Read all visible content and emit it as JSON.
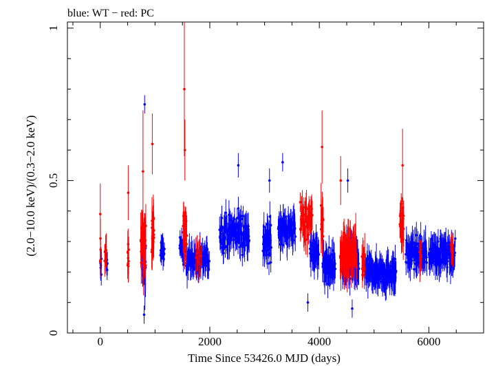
{
  "chart_data": {
    "type": "scatter",
    "title": "blue: WT − red: PC",
    "xlabel": "Time Since 53426.0 MJD (days)",
    "ylabel": "(2.0−10.0 keV)/(0.3−2.0 keV)",
    "xlim": [
      -600,
      7000
    ],
    "ylim": [
      0,
      1.02
    ],
    "x_ticks": [
      0,
      2000,
      4000,
      6000
    ],
    "x_tick_labels": [
      "0",
      "2000",
      "4000",
      "6000"
    ],
    "y_ticks": [
      0,
      0.5,
      1
    ],
    "y_tick_labels": [
      "0",
      "0.5",
      "1"
    ],
    "grid": false,
    "legend": "none",
    "series": [
      {
        "name": "WT",
        "color": "#0000ff",
        "mode": "WT",
        "clusters": [
          {
            "start": 0,
            "end": 20,
            "mean": 0.22,
            "spread": 0.05,
            "err": 0.04,
            "n": 8
          },
          {
            "start": 110,
            "end": 130,
            "mean": 0.23,
            "spread": 0.05,
            "err": 0.04,
            "n": 6
          },
          {
            "start": 760,
            "end": 800,
            "mean": 0.22,
            "spread": 0.08,
            "err": 0.05,
            "n": 14
          },
          {
            "start": 805,
            "end": 830,
            "mean": 0.25,
            "spread": 0.12,
            "err": 0.07,
            "n": 10
          },
          {
            "start": 1100,
            "end": 1170,
            "mean": 0.27,
            "spread": 0.04,
            "err": 0.03,
            "n": 18
          },
          {
            "start": 1450,
            "end": 1530,
            "mean": 0.27,
            "spread": 0.06,
            "err": 0.03,
            "n": 20
          },
          {
            "start": 1560,
            "end": 1990,
            "mean": 0.24,
            "spread": 0.06,
            "err": 0.04,
            "n": 70
          },
          {
            "start": 2180,
            "end": 2720,
            "mean": 0.33,
            "spread": 0.09,
            "err": 0.04,
            "n": 110
          },
          {
            "start": 2970,
            "end": 3120,
            "mean": 0.3,
            "spread": 0.1,
            "err": 0.04,
            "n": 40
          },
          {
            "start": 3250,
            "end": 3560,
            "mean": 0.34,
            "spread": 0.07,
            "err": 0.04,
            "n": 70
          },
          {
            "start": 3830,
            "end": 3990,
            "mean": 0.27,
            "spread": 0.07,
            "err": 0.04,
            "n": 40
          },
          {
            "start": 4060,
            "end": 4290,
            "mean": 0.22,
            "spread": 0.07,
            "err": 0.04,
            "n": 60
          },
          {
            "start": 4420,
            "end": 4720,
            "mean": 0.23,
            "spread": 0.08,
            "err": 0.05,
            "n": 70
          },
          {
            "start": 4840,
            "end": 5400,
            "mean": 0.2,
            "spread": 0.06,
            "err": 0.04,
            "n": 120
          },
          {
            "start": 5580,
            "end": 5960,
            "mean": 0.26,
            "spread": 0.07,
            "err": 0.04,
            "n": 80
          },
          {
            "start": 6000,
            "end": 6480,
            "mean": 0.26,
            "spread": 0.06,
            "err": 0.04,
            "n": 100
          }
        ],
        "points": [
          {
            "x": 810,
            "y": 0.75,
            "err": 0.03
          },
          {
            "x": 800,
            "y": 0.06,
            "err": 0.03
          },
          {
            "x": 3330,
            "y": 0.56,
            "err": 0.03
          },
          {
            "x": 3090,
            "y": 0.5,
            "err": 0.04
          },
          {
            "x": 2520,
            "y": 0.55,
            "err": 0.04
          },
          {
            "x": 3790,
            "y": 0.1,
            "err": 0.03
          },
          {
            "x": 4520,
            "y": 0.5,
            "err": 0.04
          },
          {
            "x": 4600,
            "y": 0.08,
            "err": 0.03
          }
        ]
      },
      {
        "name": "PC",
        "color": "#ff0000",
        "mode": "PC",
        "clusters": [
          {
            "start": 0,
            "end": 5,
            "mean": 0.26,
            "spread": 0.08,
            "err": 0.05,
            "n": 4
          },
          {
            "start": 80,
            "end": 110,
            "mean": 0.26,
            "spread": 0.06,
            "err": 0.04,
            "n": 8
          },
          {
            "start": 500,
            "end": 520,
            "mean": 0.25,
            "spread": 0.06,
            "err": 0.05,
            "n": 10
          },
          {
            "start": 740,
            "end": 830,
            "mean": 0.3,
            "spread": 0.12,
            "err": 0.07,
            "n": 30
          },
          {
            "start": 940,
            "end": 980,
            "mean": 0.33,
            "spread": 0.12,
            "err": 0.06,
            "n": 22
          },
          {
            "start": 1510,
            "end": 1580,
            "mean": 0.33,
            "spread": 0.1,
            "err": 0.05,
            "n": 18
          },
          {
            "start": 1750,
            "end": 1840,
            "mean": 0.26,
            "spread": 0.04,
            "err": 0.05,
            "n": 6
          },
          {
            "start": 3650,
            "end": 3870,
            "mean": 0.37,
            "spread": 0.1,
            "err": 0.05,
            "n": 40
          },
          {
            "start": 4030,
            "end": 4070,
            "mean": 0.35,
            "spread": 0.12,
            "err": 0.06,
            "n": 14
          },
          {
            "start": 4380,
            "end": 4680,
            "mean": 0.26,
            "spread": 0.09,
            "err": 0.06,
            "n": 70
          },
          {
            "start": 4780,
            "end": 4830,
            "mean": 0.23,
            "spread": 0.08,
            "err": 0.05,
            "n": 12
          },
          {
            "start": 5470,
            "end": 5540,
            "mean": 0.35,
            "spread": 0.1,
            "err": 0.05,
            "n": 22
          },
          {
            "start": 5830,
            "end": 5860,
            "mean": 0.27,
            "spread": 0.07,
            "err": 0.04,
            "n": 6
          },
          {
            "start": 6400,
            "end": 6440,
            "mean": 0.28,
            "spread": 0.05,
            "err": 0.04,
            "n": 6
          }
        ],
        "points": [
          {
            "x": 1535,
            "y": 0.8,
            "err": 0.22
          },
          {
            "x": 1545,
            "y": 0.6,
            "err": 0.1
          },
          {
            "x": 4050,
            "y": 0.61,
            "err": 0.12
          },
          {
            "x": 5520,
            "y": 0.55,
            "err": 0.12
          },
          {
            "x": 950,
            "y": 0.62,
            "err": 0.1
          },
          {
            "x": 510,
            "y": 0.46,
            "err": 0.09
          },
          {
            "x": 780,
            "y": 0.53,
            "err": 0.2
          },
          {
            "x": 0,
            "y": 0.39,
            "err": 0.1
          },
          {
            "x": 4390,
            "y": 0.5,
            "err": 0.08
          }
        ]
      }
    ]
  }
}
